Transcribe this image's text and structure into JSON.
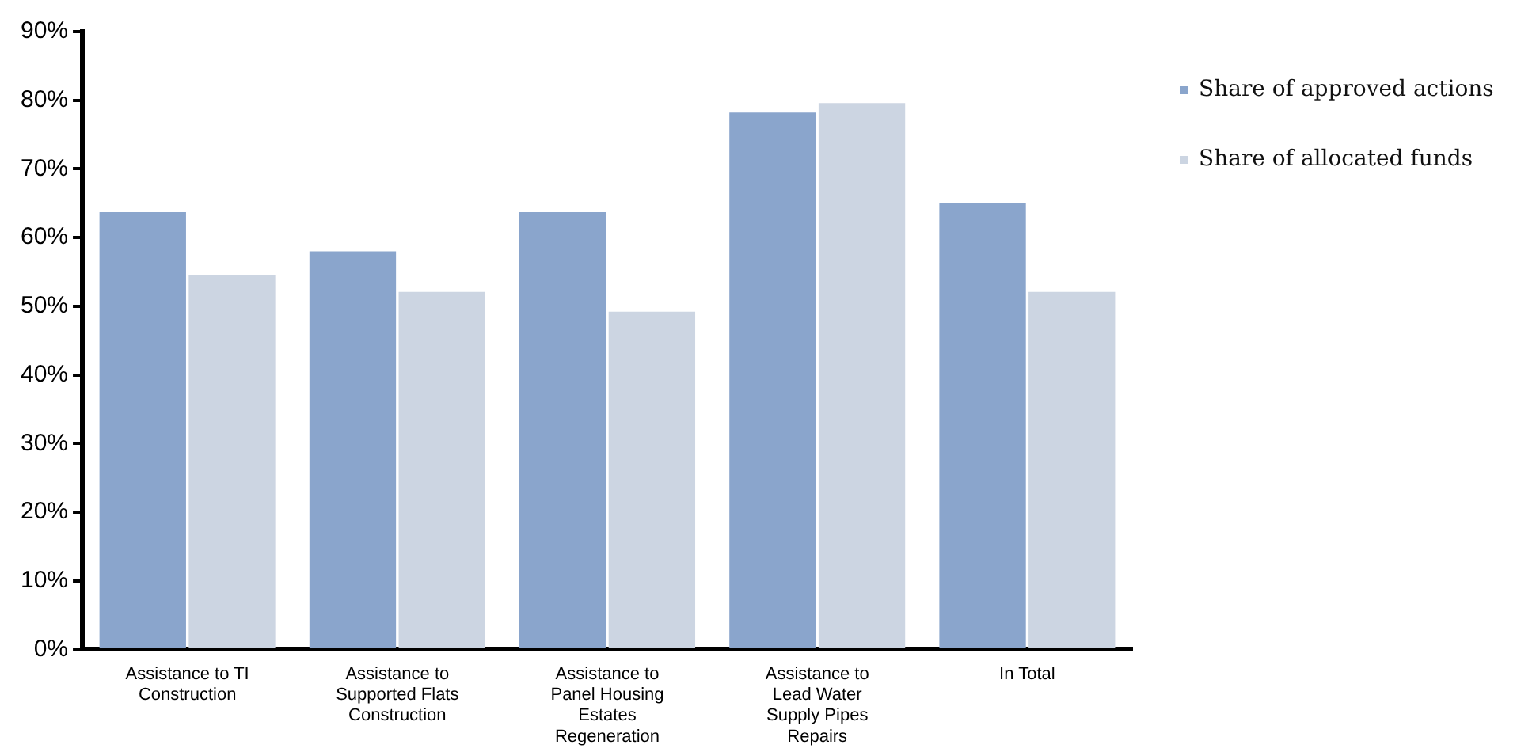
{
  "chart_data": {
    "type": "bar",
    "categories": [
      "Assistance to TI Construction",
      "Assistance to Supported Flats Construction",
      "Assistance to Panel Housing Estates Regeneration",
      "Assistance to Lead Water Supply Pipes Repairs",
      "In Total"
    ],
    "series": [
      {
        "name": "Share of approved actions",
        "color": "#8aa5cc",
        "values": [
          63.7,
          58.0,
          63.7,
          78.2,
          65.1
        ]
      },
      {
        "name": "Share of allocated funds",
        "color": "#ccd5e2",
        "values": [
          54.5,
          52.1,
          49.2,
          79.6,
          52.1
        ]
      }
    ],
    "ylim": [
      0,
      90
    ],
    "yticks": [
      {
        "value": 0,
        "label": "0%"
      },
      {
        "value": 10,
        "label": "10%"
      },
      {
        "value": 20,
        "label": "20%"
      },
      {
        "value": 30,
        "label": "30%"
      },
      {
        "value": 40,
        "label": "40%"
      },
      {
        "value": 50,
        "label": "50%"
      },
      {
        "value": 60,
        "label": "60%"
      },
      {
        "value": 70,
        "label": "70%"
      },
      {
        "value": 80,
        "label": "80%"
      },
      {
        "value": 90,
        "label": "90%"
      }
    ],
    "grid": false,
    "legend": "right"
  }
}
